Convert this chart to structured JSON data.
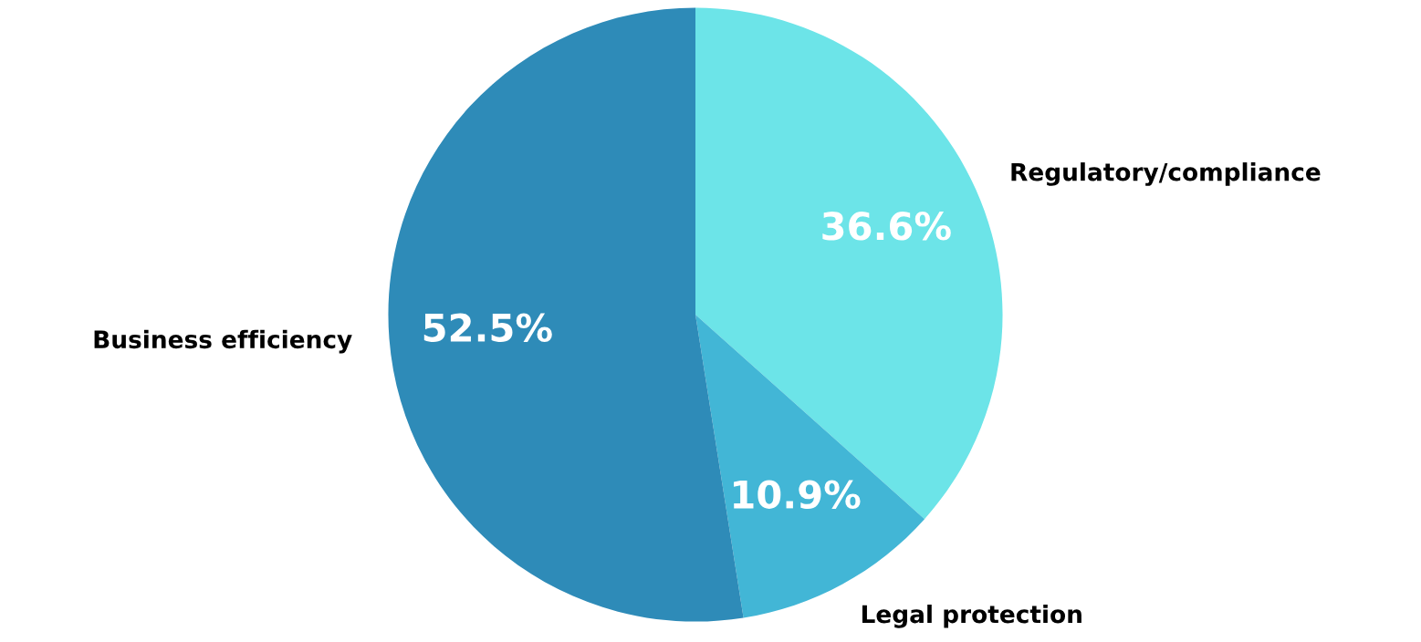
{
  "chart_data": {
    "type": "pie",
    "categories": [
      "Regulatory/compliance",
      "Legal protection",
      "Business efficiency"
    ],
    "values": [
      36.6,
      10.9,
      52.5
    ],
    "colors": [
      "#6ce4e8",
      "#42b6d6",
      "#2e8bb8"
    ],
    "value_labels": [
      "36.6%",
      "10.9%",
      "52.5%"
    ]
  }
}
